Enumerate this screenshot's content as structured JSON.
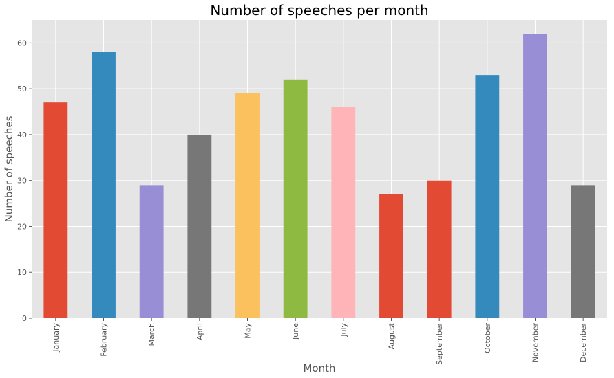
{
  "chart_data": {
    "type": "bar",
    "title": "Number of speeches per month",
    "xlabel": "Month",
    "ylabel": "Number of speeches",
    "categories": [
      "January",
      "February",
      "March",
      "April",
      "May",
      "June",
      "July",
      "August",
      "September",
      "October",
      "November",
      "December"
    ],
    "values": [
      47,
      58,
      29,
      40,
      49,
      52,
      46,
      27,
      30,
      53,
      62,
      29
    ],
    "colors": [
      "#E24A33",
      "#348ABD",
      "#988ED5",
      "#777777",
      "#FBC15E",
      "#8EBA42",
      "#FFB5B8",
      "#E24A33",
      "#E24A33",
      "#348ABD",
      "#988ED5",
      "#777777"
    ],
    "ylim": [
      0,
      65
    ],
    "yticks": [
      0,
      10,
      20,
      30,
      40,
      50,
      60
    ],
    "grid": true,
    "background_color": "#E5E5E5",
    "grid_color": "#FFFFFF"
  }
}
